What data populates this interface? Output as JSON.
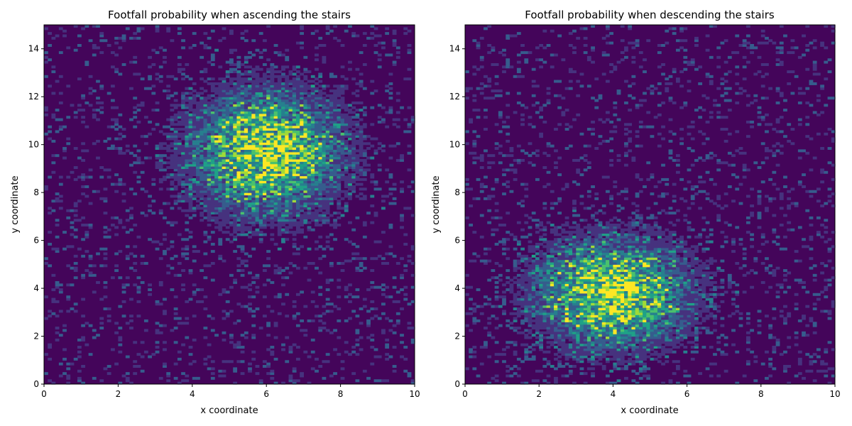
{
  "figure": {
    "background": "#ffffff"
  },
  "chart_data": [
    {
      "type": "heatmap",
      "title": "Footfall probability when ascending the stairs",
      "xlabel": "x coordinate",
      "ylabel": "y coordinate",
      "xlim": [
        0,
        10
      ],
      "ylim": [
        0,
        15
      ],
      "xticks": [
        0,
        2,
        4,
        6,
        8,
        10
      ],
      "yticks": [
        0,
        2,
        4,
        6,
        8,
        10,
        12,
        14
      ],
      "grid": false,
      "colormap": "viridis",
      "hotspot_center": [
        6.0,
        9.7
      ],
      "hotspot_spread": [
        1.3,
        1.6
      ]
    },
    {
      "type": "heatmap",
      "title": "Footfall probability when descending the stairs",
      "xlabel": "x coordinate",
      "ylabel": "y coordinate",
      "xlim": [
        0,
        10
      ],
      "ylim": [
        0,
        15
      ],
      "xticks": [
        0,
        2,
        4,
        6,
        8,
        10
      ],
      "yticks": [
        0,
        2,
        4,
        6,
        8,
        10,
        12,
        14
      ],
      "grid": false,
      "colormap": "viridis",
      "hotspot_center": [
        4.0,
        3.8
      ],
      "hotspot_spread": [
        1.3,
        1.4
      ]
    }
  ]
}
